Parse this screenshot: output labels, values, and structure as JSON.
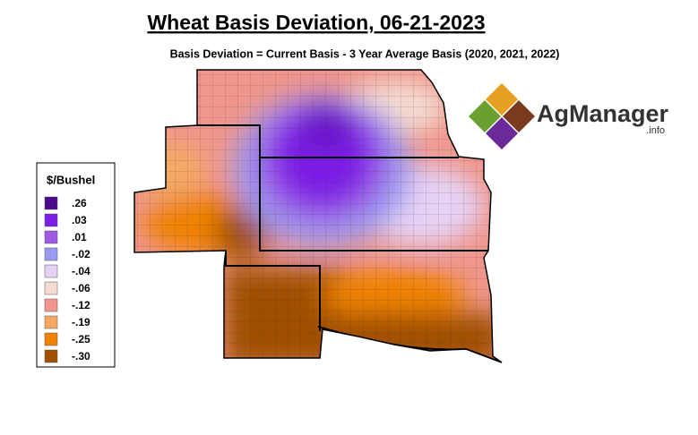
{
  "header": {
    "title": "Wheat Basis Deviation, 06-21-2023",
    "subtitle": "Basis Deviation = Current Basis - 3 Year Average Basis (2020, 2021, 2022)"
  },
  "legend": {
    "title": "$/Bushel",
    "items": [
      {
        "label": ".26",
        "color": "#4b0a8c"
      },
      {
        "label": ".03",
        "color": "#7b1ee6"
      },
      {
        "label": ".01",
        "color": "#a05ae6"
      },
      {
        "label": "-.02",
        "color": "#9a9af0"
      },
      {
        "label": "-.04",
        "color": "#e6d2f5"
      },
      {
        "label": "-.06",
        "color": "#f5dcd2"
      },
      {
        "label": "-.12",
        "color": "#f0968c"
      },
      {
        "label": "-.19",
        "color": "#f5aa64"
      },
      {
        "label": "-.25",
        "color": "#f08200"
      },
      {
        "label": "-.30",
        "color": "#a05000"
      }
    ]
  },
  "logo": {
    "name": "AgManager",
    "suffix": ".info"
  }
}
